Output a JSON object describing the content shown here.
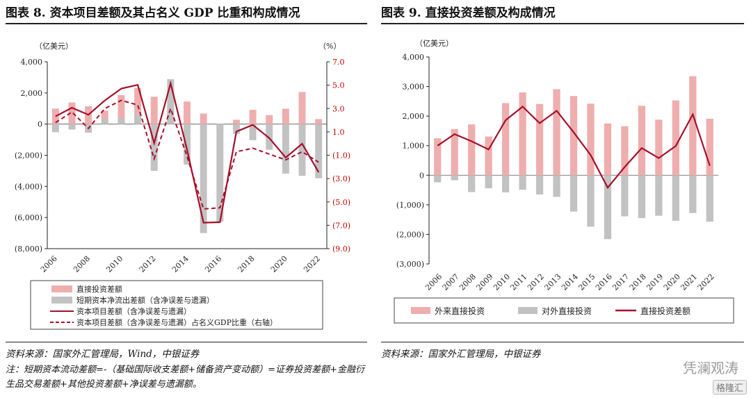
{
  "left": {
    "title": "图表 8. 资本项目差额及其占名义 GDP 比重和构成情况",
    "y_unit_left": "（亿美元）",
    "y_unit_right": "（%）",
    "source": "资料来源：国家外汇管理局，Wind，中银证券",
    "note": "注：短期资本流动差额=-（基础国际收支差额+储备资产变动额）=证券投资差额+金融衍生品交易差额+其他投资差额+净误差与遗漏额。",
    "colors": {
      "fdi": "#efaeae",
      "short": "#c2c2c2",
      "line": "#a50f2a",
      "axis_right": "#c00000"
    }
  },
  "right": {
    "title": "图表 9. 直接投资差额及构成情况",
    "y_unit": "（亿美元）",
    "source": "资料来源：国家外汇管理局，中银证券",
    "colors": {
      "inflow": "#efaeae",
      "outflow": "#c2c2c2",
      "line": "#a50f2a"
    }
  },
  "watermark": {
    "text": "凭澜观涛",
    "badge": "格隆汇"
  },
  "chart_data": [
    {
      "type": "bar",
      "title": "图表 8. 资本项目差额及其占名义 GDP 比重和构成情况",
      "categories": [
        "2006",
        "2007",
        "2008",
        "2009",
        "2010",
        "2011",
        "2012",
        "2013",
        "2014",
        "2015",
        "2016",
        "2017",
        "2018",
        "2019",
        "2020",
        "2021",
        "2022"
      ],
      "xticks": [
        "2006",
        "2008",
        "2010",
        "2012",
        "2014",
        "2016",
        "2018",
        "2020",
        "2022"
      ],
      "ylim_left": [
        -8000,
        4000
      ],
      "yticks_left": [
        "4,000",
        "2,000",
        "0",
        "(2,000)",
        "(4,000)",
        "(6,000)",
        "(8,000)"
      ],
      "ylim_right": [
        -9,
        7
      ],
      "yticks_right": [
        "7.0",
        "5.0",
        "3.0",
        "1.0",
        "(1.0)",
        "(3.0)",
        "(5.0)",
        "(7.0)",
        "(9.0)"
      ],
      "legend": "bottom",
      "series": [
        {
          "name": "直接投资差额",
          "kind": "bar",
          "axis": "left",
          "values": [
            1000,
            1390,
            1150,
            870,
            1860,
            2320,
            1760,
            2180,
            1450,
            680,
            -420,
            280,
            920,
            580,
            990,
            2060,
            320
          ]
        },
        {
          "name": "短期资本净流出差额（含净误差与遗漏）",
          "kind": "bar",
          "axis": "left",
          "values": [
            -520,
            -350,
            -550,
            350,
            380,
            650,
            -3000,
            2880,
            -2600,
            -7000,
            -6270,
            -630,
            -1030,
            -1650,
            -3180,
            -3320,
            -3480
          ]
        },
        {
          "name": "资本项目差额（含净误差与遗漏）",
          "kind": "line",
          "axis": "left",
          "values": [
            500,
            1050,
            600,
            1520,
            2280,
            2520,
            -1220,
            2620,
            -1650,
            -6330,
            -6300,
            -480,
            -50,
            -900,
            -2150,
            -1260,
            -3090
          ]
        },
        {
          "name": "资本项目差额（含净误差与遗漏）占名义GDP比重（右轴）",
          "kind": "dashed-line",
          "axis": "right",
          "values": [
            1.8,
            2.7,
            1.3,
            3.0,
            3.7,
            3.3,
            -1.3,
            3.0,
            -1.1,
            -5.6,
            -5.5,
            -0.7,
            -0.4,
            -0.9,
            -1.4,
            -0.7,
            -1.6
          ]
        }
      ]
    },
    {
      "type": "bar",
      "title": "图表 9. 直接投资差额及构成情况",
      "categories": [
        "2006",
        "2007",
        "2008",
        "2009",
        "2010",
        "2011",
        "2012",
        "2013",
        "2014",
        "2015",
        "2016",
        "2017",
        "2018",
        "2019",
        "2020",
        "2021",
        "2022"
      ],
      "ylim": [
        -3000,
        4000
      ],
      "yticks": [
        "4,000",
        "3,000",
        "2,000",
        "1,000",
        "0",
        "(1,000)",
        "(2,000)",
        "(3,000)"
      ],
      "legend": "bottom",
      "series": [
        {
          "name": "外来直接投资",
          "kind": "bar",
          "values": [
            1250,
            1560,
            1720,
            1310,
            2440,
            2800,
            2410,
            2910,
            2680,
            2420,
            1750,
            1660,
            2350,
            1880,
            2530,
            3350,
            1910
          ]
        },
        {
          "name": "对外直接投资",
          "kind": "bar",
          "values": [
            -240,
            -170,
            -570,
            -440,
            -580,
            -490,
            -650,
            -730,
            -1230,
            -1740,
            -2160,
            -1390,
            -1450,
            -1370,
            -1540,
            -1280,
            -1570
          ]
        },
        {
          "name": "直接投资差额",
          "kind": "line",
          "values": [
            1000,
            1390,
            1150,
            870,
            1860,
            2320,
            1760,
            2180,
            1450,
            680,
            -420,
            280,
            920,
            580,
            990,
            2060,
            320
          ]
        }
      ]
    }
  ]
}
